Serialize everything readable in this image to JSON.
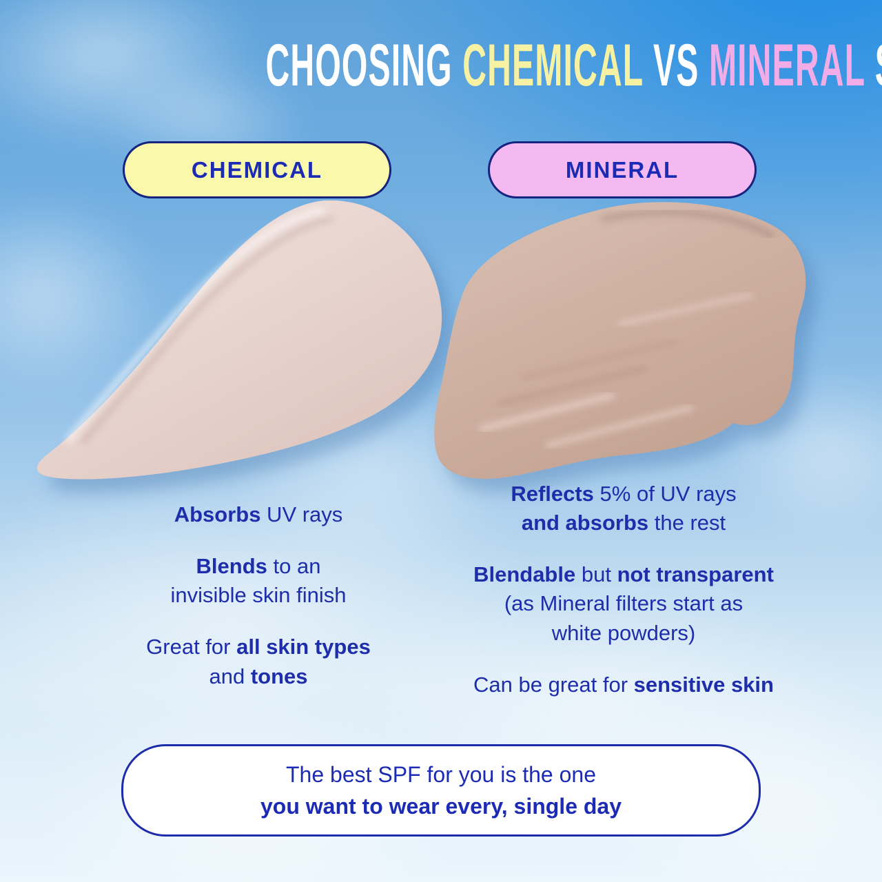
{
  "title": {
    "segments": [
      {
        "text": "CHOOSING ",
        "color": "#ffffff"
      },
      {
        "text": "CHEMICAL",
        "color": "#f6f1a3"
      },
      {
        "text": " VS ",
        "color": "#ffffff"
      },
      {
        "text": "MINERAL",
        "color": "#f2ace8"
      },
      {
        "text": " SPF",
        "color": "#ffffff"
      }
    ],
    "plain": "CHOOSING CHEMICAL VS MINERAL SPF"
  },
  "chemical": {
    "pill_label": "CHEMICAL",
    "points": [
      {
        "segments": [
          {
            "text": "Absorbs",
            "bold": true
          },
          {
            "text": " UV rays"
          }
        ]
      },
      {
        "segments": [
          {
            "text": "Blends",
            "bold": true
          },
          {
            "text": " to an\ninvisible skin finish"
          }
        ]
      },
      {
        "segments": [
          {
            "text": "Great for "
          },
          {
            "text": "all skin types",
            "bold": true
          },
          {
            "text": "\nand "
          },
          {
            "text": "tones",
            "bold": true
          }
        ]
      }
    ]
  },
  "mineral": {
    "pill_label": "MINERAL",
    "points": [
      {
        "segments": [
          {
            "text": "Reflects",
            "bold": true
          },
          {
            "text": " 5% of UV rays\n"
          },
          {
            "text": "and absorbs",
            "bold": true
          },
          {
            "text": " the rest"
          }
        ]
      },
      {
        "segments": [
          {
            "text": "Blendable",
            "bold": true
          },
          {
            "text": " but "
          },
          {
            "text": "not transparent",
            "bold": true
          },
          {
            "text": "\n(as Mineral filters start as\nwhite powders)"
          }
        ]
      },
      {
        "segments": [
          {
            "text": "Can be great for "
          },
          {
            "text": "sensitive skin",
            "bold": true
          }
        ]
      }
    ]
  },
  "footer": {
    "segments": [
      {
        "text": "The best SPF for you is the one\n"
      },
      {
        "text": "you want to wear every, single day",
        "bold": true
      }
    ]
  },
  "colors": {
    "body_text_blue": "#1e2daa",
    "pill_text_blue": "#1c2bb4",
    "pill_border_navy": "#16237f",
    "chemical_pill_bg": "#f9f8ab",
    "mineral_pill_bg": "#f4b9f1",
    "title_yellow": "#f6f1a3",
    "title_pink": "#f2ace8",
    "sky_top_right": "#1e8ce6",
    "sky_top_left": "#5ea2da",
    "sky_bottom": "#eaf5fc",
    "chemical_swatch": "#e6d2cc",
    "mineral_swatch": "#cbab9c",
    "footer_bg": "#ffffff"
  }
}
